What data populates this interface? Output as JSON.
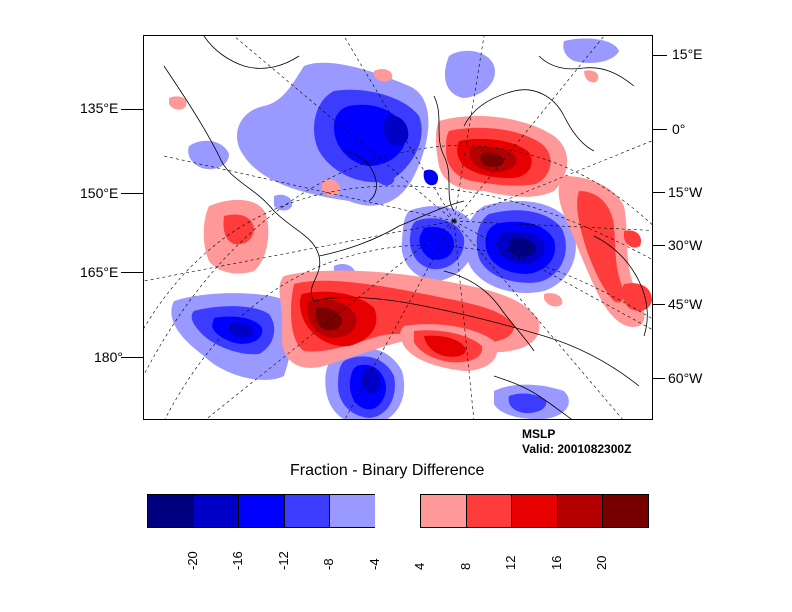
{
  "map": {
    "left_axis_labels": [
      "135°E",
      "150°E",
      "165°E",
      "180°"
    ],
    "right_axis_labels": [
      "15°E",
      "0°",
      "15°W",
      "30°W",
      "45°W",
      "60°W"
    ]
  },
  "annotation": {
    "field": "MSLP",
    "valid": "Valid: 2001082300Z"
  },
  "title": "Fraction - Binary Difference",
  "colorbar": {
    "levels": [
      "-20",
      "-16",
      "-12",
      "-8",
      "-4",
      "4",
      "8",
      "12",
      "16",
      "20"
    ],
    "colors": [
      "#000080",
      "#0000c8",
      "#0000ff",
      "#3c3cff",
      "#9999ff",
      "#ffffff",
      "#ff9999",
      "#ff3c3c",
      "#e60000",
      "#b40000",
      "#780000"
    ]
  },
  "anomalies": [
    {
      "name": "neg-north-siberia",
      "sign": "negative",
      "peak": -14
    },
    {
      "name": "neg-north-atlantic",
      "sign": "negative",
      "peak": -20
    },
    {
      "name": "neg-barents",
      "sign": "negative",
      "peak": -12
    },
    {
      "name": "neg-pacific-west",
      "sign": "negative",
      "peak": -12
    },
    {
      "name": "neg-pacific-south",
      "sign": "negative",
      "peak": -16
    },
    {
      "name": "neg-greenland-north",
      "sign": "negative",
      "peak": -4
    },
    {
      "name": "neg-canada-south",
      "sign": "negative",
      "peak": -8
    },
    {
      "name": "pos-alaska",
      "sign": "positive",
      "peak": 20
    },
    {
      "name": "pos-europe",
      "sign": "positive",
      "peak": 20
    },
    {
      "name": "pos-atlantic-east",
      "sign": "positive",
      "peak": 12
    },
    {
      "name": "pos-east-siberia",
      "sign": "positive",
      "peak": 8
    },
    {
      "name": "pos-canada",
      "sign": "positive",
      "peak": 12
    }
  ]
}
